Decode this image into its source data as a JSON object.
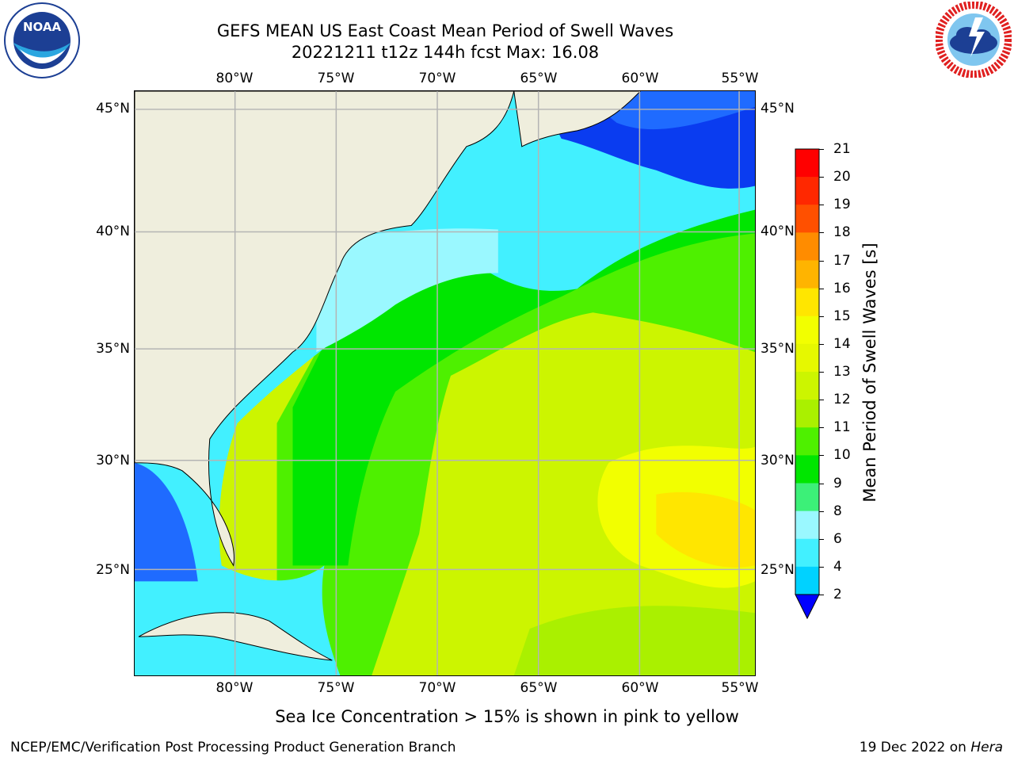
{
  "title": {
    "line1": "GEFS MEAN US East Coast Mean Period of Swell Waves",
    "line2": "20221211 t12z 144h fcst   Max: 16.08"
  },
  "map": {
    "lon_ticks": [
      "80°W",
      "75°W",
      "70°W",
      "65°W",
      "60°W",
      "55°W"
    ],
    "lat_ticks": [
      "45°N",
      "40°N",
      "35°N",
      "30°N",
      "25°N"
    ],
    "lon_range": [
      -85,
      -54.2
    ],
    "lat_range": [
      20.3,
      46.0
    ],
    "gridlines": true,
    "land_color": "#efeedd",
    "field_color_zones": [
      {
        "region": "northeast-offshore",
        "period_s": 3
      },
      {
        "region": "nearshore-shelf",
        "period_s": 7
      },
      {
        "region": "mid-atlantic-slope",
        "period_s": 10
      },
      {
        "region": "central-atlantic",
        "period_s": 13
      },
      {
        "region": "southeast-central-atlantic",
        "period_s": 15
      }
    ]
  },
  "colorbar": {
    "label": "Mean Period of Swell Waves [s]",
    "ticks": [
      "2",
      "4",
      "6",
      "8",
      "9",
      "10",
      "11",
      "12",
      "13",
      "14",
      "15",
      "16",
      "17",
      "18",
      "19",
      "20",
      "21"
    ],
    "colors": [
      "#0a3cf0",
      "#00d2ff",
      "#42f0ff",
      "#9af8ff",
      "#3cf078",
      "#00e600",
      "#4ef000",
      "#aaf000",
      "#ccf500",
      "#e6f800",
      "#f2ff00",
      "#ffe600",
      "#ffb400",
      "#ff8c00",
      "#ff5000",
      "#ff2800",
      "#ff0000"
    ],
    "extend": "min"
  },
  "caption": "Sea Ice Concentration > 15% is shown in pink to yellow",
  "footer": {
    "left": "NCEP/EMC/Verification Post Processing Product Generation Branch",
    "date": "19 Dec 2022 on ",
    "host": "Hera"
  },
  "logos": {
    "left": "noaa-logo",
    "right": "national-weather-service-logo",
    "left_ring_text": "NATIONAL OCEANIC AND ATMOSPHERIC ADMINISTRATION · U.S. DEPARTMENT OF COMMERCE",
    "right_ring_text": "NATIONAL WEATHER SERVICE"
  }
}
